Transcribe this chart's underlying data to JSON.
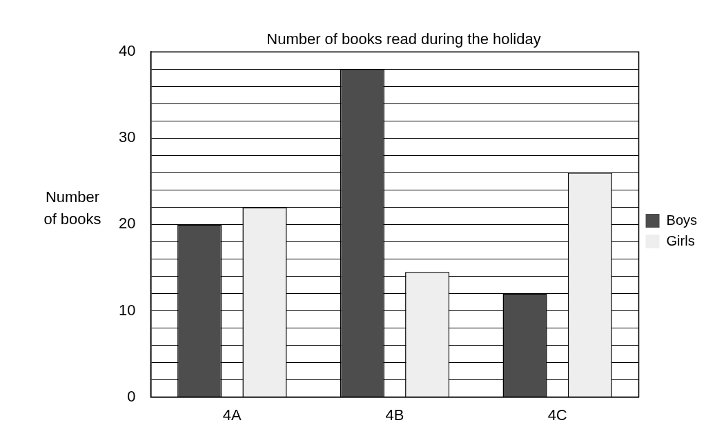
{
  "chart_data": {
    "type": "bar",
    "title": "Number of books read during the holiday",
    "ylabel": "Number of books",
    "categories": [
      "4A",
      "4B",
      "4C"
    ],
    "series": [
      {
        "name": "Boys",
        "color": "#4d4d4d",
        "values": [
          20,
          38,
          12
        ]
      },
      {
        "name": "Girls",
        "color": "#eeeeee",
        "values": [
          22,
          14.5,
          26
        ]
      }
    ],
    "ylim": [
      0,
      40
    ],
    "yticks": [
      0,
      {
        "value": 2,
        "label": null
      },
      {
        "value": 4,
        "label": null
      },
      {
        "value": 6,
        "label": null
      },
      {
        "value": 8,
        "label": null
      },
      10,
      {
        "value": 12,
        "label": null
      },
      {
        "value": 14,
        "label": null
      },
      {
        "value": 16,
        "label": null
      },
      {
        "value": 18,
        "label": null
      },
      20,
      {
        "value": 22,
        "label": null
      },
      {
        "value": 24,
        "label": null
      },
      {
        "value": 26,
        "label": null
      },
      {
        "value": 28,
        "label": null
      },
      30,
      {
        "value": 32,
        "label": null
      },
      {
        "value": 34,
        "label": null
      },
      {
        "value": 36,
        "label": null
      },
      {
        "value": 38,
        "label": null
      },
      40
    ],
    "grid": "y",
    "legend": "right"
  }
}
